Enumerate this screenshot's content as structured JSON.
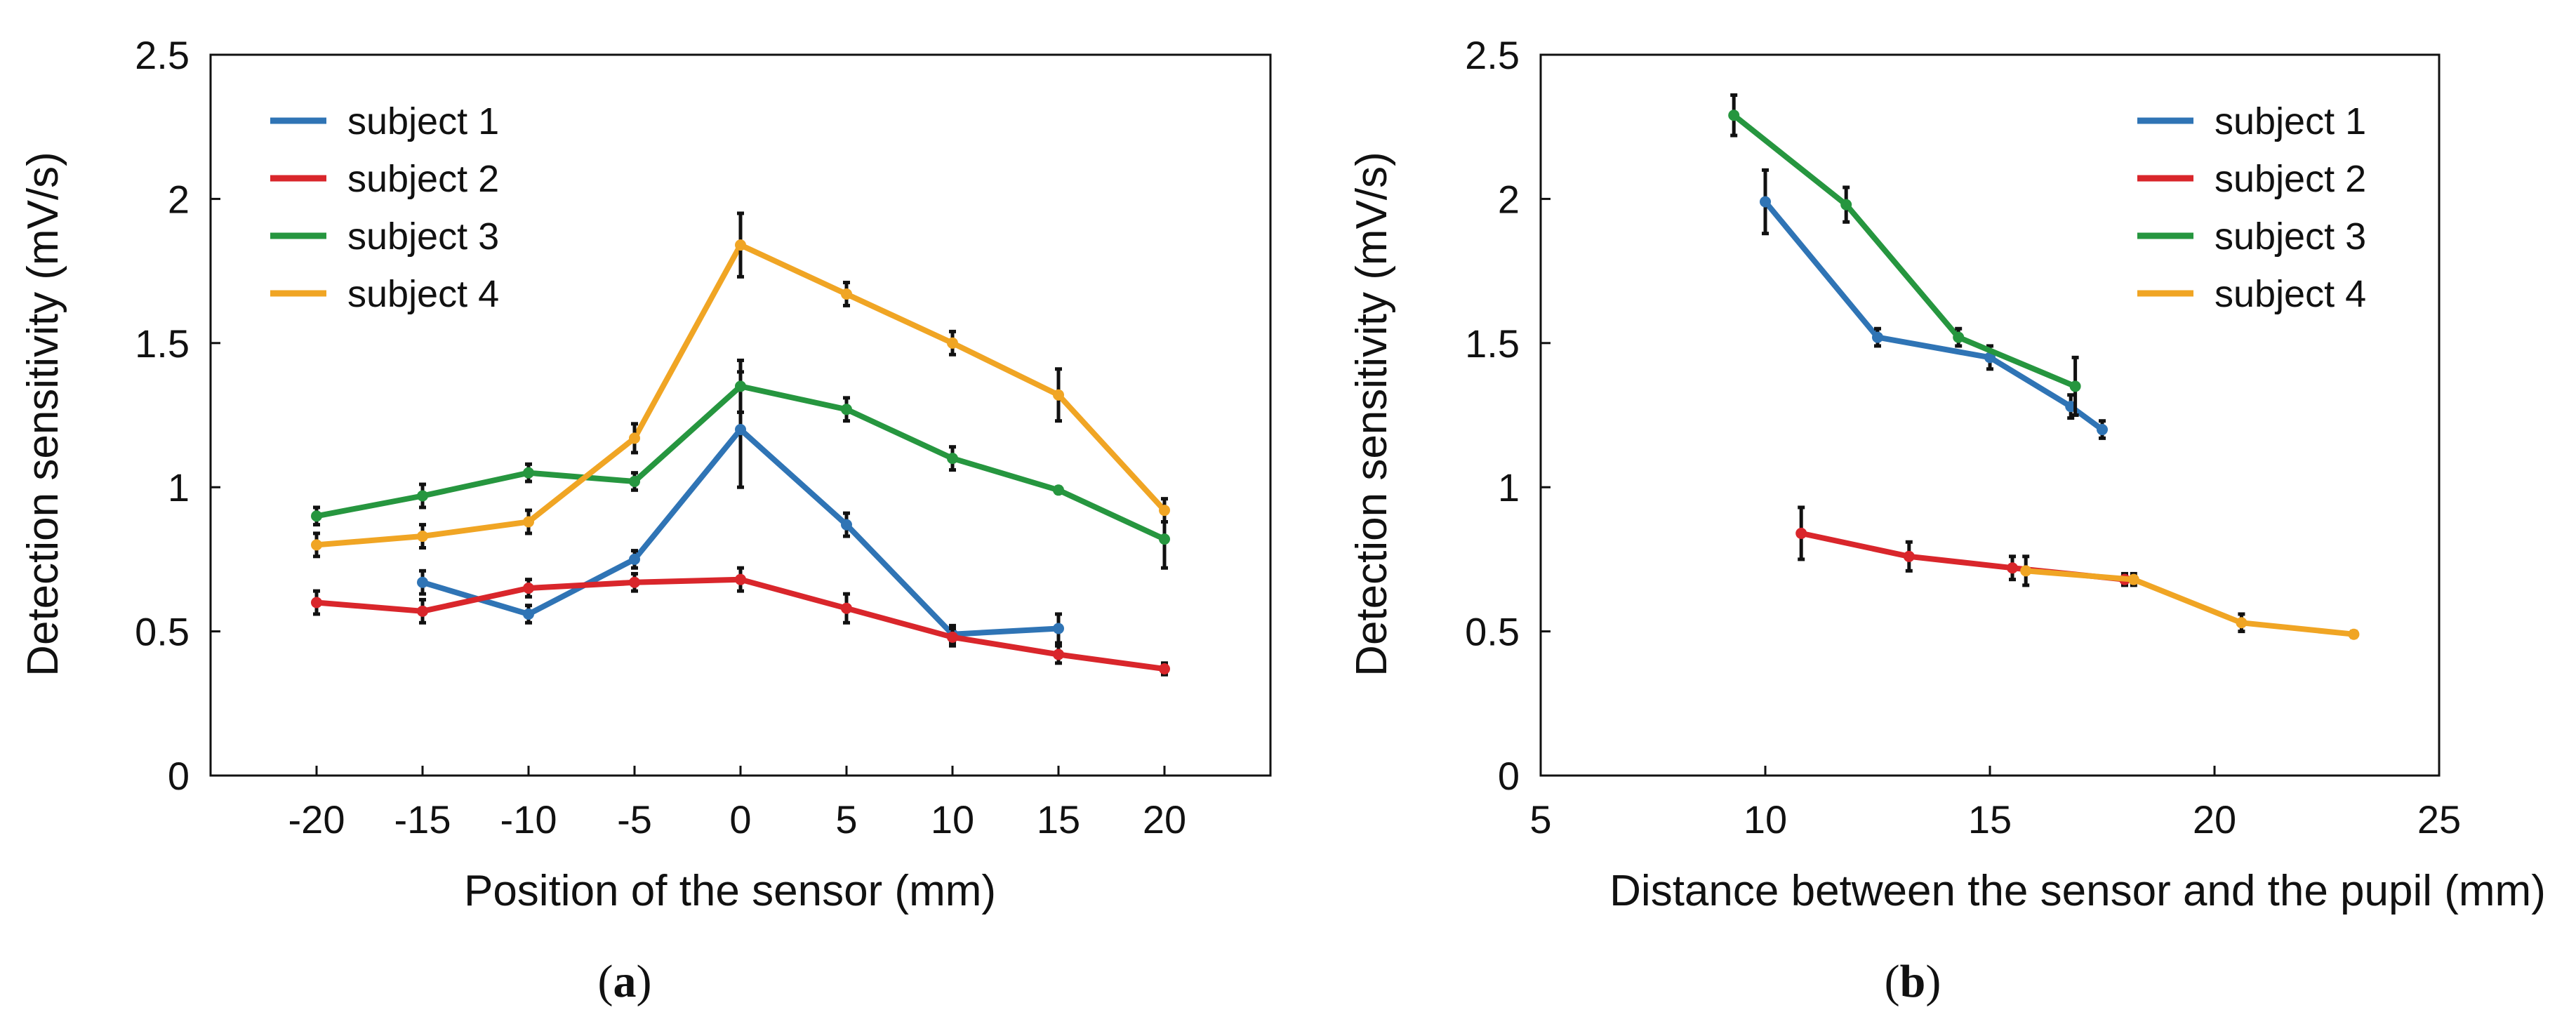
{
  "chart_data": [
    {
      "type": "line",
      "panel": "a",
      "xlabel": "Position of the sensor (mm)",
      "ylabel": "Detection sensitivity (mV/s)",
      "xlim": [
        -25,
        25
      ],
      "ylim": [
        0,
        2.5
      ],
      "xticks": [
        -20,
        -15,
        -10,
        -5,
        0,
        5,
        10,
        15,
        20
      ],
      "xtick_labels": [
        "-20",
        "-15",
        "-10",
        "-5",
        "0",
        "5",
        "10",
        "15",
        "20"
      ],
      "yticks": [
        0,
        0.5,
        1,
        1.5,
        2,
        2.5
      ],
      "ytick_labels": [
        "0",
        "0.5",
        "1",
        "1.5",
        "2",
        "2.5"
      ],
      "legend_position": "top-left",
      "series": [
        {
          "name": "subject 1",
          "color": "#2f74b5",
          "x": [
            -15,
            -10,
            -5,
            0,
            5,
            10,
            15
          ],
          "y": [
            0.67,
            0.56,
            0.75,
            1.2,
            0.87,
            0.49,
            0.51
          ],
          "err": [
            0.04,
            0.03,
            0.03,
            0.2,
            0.04,
            0.03,
            0.05
          ]
        },
        {
          "name": "subject 2",
          "color": "#d9262b",
          "x": [
            -20,
            -15,
            -10,
            -5,
            0,
            5,
            10,
            15,
            20
          ],
          "y": [
            0.6,
            0.57,
            0.65,
            0.67,
            0.68,
            0.58,
            0.48,
            0.42,
            0.37
          ],
          "err": [
            0.04,
            0.04,
            0.03,
            0.03,
            0.04,
            0.05,
            0.03,
            0.03,
            0.02
          ]
        },
        {
          "name": "subject 3",
          "color": "#26963f",
          "x": [
            -20,
            -15,
            -10,
            -5,
            0,
            5,
            10,
            15,
            20
          ],
          "y": [
            0.9,
            0.97,
            1.05,
            1.02,
            1.35,
            1.27,
            1.1,
            0.99,
            0.82
          ],
          "err": [
            0.03,
            0.04,
            0.03,
            0.03,
            0.09,
            0.04,
            0.04,
            0.01,
            0.1
          ]
        },
        {
          "name": "subject 4",
          "color": "#f0a524",
          "x": [
            -20,
            -15,
            -10,
            -5,
            0,
            5,
            10,
            15,
            20
          ],
          "y": [
            0.8,
            0.83,
            0.88,
            1.17,
            1.84,
            1.67,
            1.5,
            1.32,
            0.92
          ],
          "err": [
            0.04,
            0.04,
            0.04,
            0.05,
            0.11,
            0.04,
            0.04,
            0.09,
            0.04
          ]
        }
      ]
    },
    {
      "type": "line",
      "panel": "b",
      "xlabel": "Distance between the sensor and the pupil (mm)",
      "ylabel": "Detection sensitivity (mV/s)",
      "xlim": [
        5,
        25
      ],
      "ylim": [
        0,
        2.5
      ],
      "xticks": [
        5,
        10,
        15,
        20,
        25
      ],
      "xtick_labels": [
        "5",
        "10",
        "15",
        "20",
        "25"
      ],
      "yticks": [
        0,
        0.5,
        1,
        1.5,
        2,
        2.5
      ],
      "ytick_labels": [
        "0",
        "0.5",
        "1",
        "1.5",
        "2",
        "2.5"
      ],
      "legend_position": "top-right",
      "series": [
        {
          "name": "subject 1",
          "color": "#2f74b5",
          "x": [
            10.0,
            12.5,
            15.0,
            16.8,
            17.5
          ],
          "y": [
            1.99,
            1.52,
            1.45,
            1.28,
            1.2
          ],
          "err": [
            0.11,
            0.03,
            0.04,
            0.04,
            0.03
          ]
        },
        {
          "name": "subject 2",
          "color": "#d9262b",
          "x": [
            10.8,
            13.2,
            15.5,
            18.0
          ],
          "y": [
            0.84,
            0.76,
            0.72,
            0.68
          ],
          "err": [
            0.09,
            0.05,
            0.04,
            0.02
          ]
        },
        {
          "name": "subject 3",
          "color": "#26963f",
          "x": [
            9.3,
            11.8,
            14.3,
            16.9
          ],
          "y": [
            2.29,
            1.98,
            1.52,
            1.35
          ],
          "err": [
            0.07,
            0.06,
            0.03,
            0.1
          ]
        },
        {
          "name": "subject 4",
          "color": "#f0a524",
          "x": [
            15.8,
            18.2,
            20.6,
            23.1
          ],
          "y": [
            0.71,
            0.68,
            0.53,
            0.49
          ],
          "err": [
            0.05,
            0.02,
            0.03,
            0.01
          ]
        }
      ]
    }
  ],
  "captions": {
    "a": "a",
    "b": "b"
  }
}
